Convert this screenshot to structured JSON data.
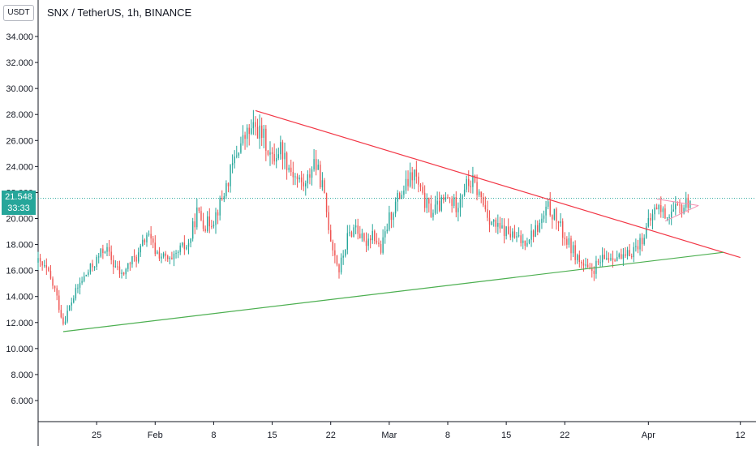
{
  "currency_label": "USDT",
  "title": "SNX / TetherUS, 1h, BINANCE",
  "last_price": {
    "value": "21.548",
    "countdown": "33:33",
    "color": "#26a69a"
  },
  "colors": {
    "up": "#26a69a",
    "down": "#ef5350",
    "resistance": "#f23645",
    "support": "#4caf50",
    "pennant": "#f48fb1",
    "price_line": "#26a69a",
    "axis": "#131722"
  },
  "chart_data": {
    "type": "candlestick",
    "title": "SNX / TetherUS, 1h, BINANCE",
    "ylim": [
      5,
      36
    ],
    "y_ticks": [
      "6.000",
      "8.000",
      "10.000",
      "12.000",
      "14.000",
      "16.000",
      "18.000",
      "20.000",
      "22.000",
      "24.000",
      "26.000",
      "28.000",
      "30.000",
      "32.000",
      "34.000"
    ],
    "x_ticks": [
      "25",
      "Feb",
      "8",
      "15",
      "22",
      "Mar",
      "8",
      "15",
      "22",
      "Apr",
      "12"
    ],
    "x_tick_dates": [
      "2021-01-25",
      "2021-02-01",
      "2021-02-08",
      "2021-02-15",
      "2021-02-22",
      "2021-03-01",
      "2021-03-08",
      "2021-03-15",
      "2021-03-22",
      "2021-04-01",
      "2021-04-12"
    ],
    "xlim": [
      "2021-01-18",
      "2021-04-13"
    ],
    "price_path": [
      [
        "2021-01-18",
        16.6
      ],
      [
        "2021-01-19",
        16.0
      ],
      [
        "2021-01-20",
        14.5
      ],
      [
        "2021-01-21",
        12.0
      ],
      [
        "2021-01-22",
        13.6
      ],
      [
        "2021-01-23",
        15.0
      ],
      [
        "2021-01-25",
        16.8
      ],
      [
        "2021-01-26",
        17.8
      ],
      [
        "2021-01-27",
        16.5
      ],
      [
        "2021-01-28",
        15.6
      ],
      [
        "2021-01-29",
        16.6
      ],
      [
        "2021-01-30",
        17.2
      ],
      [
        "2021-01-31",
        18.8
      ],
      [
        "2021-02-01",
        17.5
      ],
      [
        "2021-02-02",
        17.0
      ],
      [
        "2021-02-03",
        16.6
      ],
      [
        "2021-02-04",
        17.6
      ],
      [
        "2021-02-05",
        18.0
      ],
      [
        "2021-02-06",
        20.5
      ],
      [
        "2021-02-07",
        19.5
      ],
      [
        "2021-02-08",
        20.0
      ],
      [
        "2021-02-09",
        21.5
      ],
      [
        "2021-02-10",
        23.5
      ],
      [
        "2021-02-11",
        25.5
      ],
      [
        "2021-02-12",
        26.5
      ],
      [
        "2021-02-13",
        27.0
      ],
      [
        "2021-02-14",
        26.2
      ],
      [
        "2021-02-15",
        24.5
      ],
      [
        "2021-02-16",
        25.5
      ],
      [
        "2021-02-17",
        24.0
      ],
      [
        "2021-02-18",
        23.0
      ],
      [
        "2021-02-19",
        22.5
      ],
      [
        "2021-02-20",
        24.5
      ],
      [
        "2021-02-21",
        22.5
      ],
      [
        "2021-02-22",
        18.5
      ],
      [
        "2021-02-23",
        16.0
      ],
      [
        "2021-02-24",
        18.5
      ],
      [
        "2021-02-25",
        19.5
      ],
      [
        "2021-02-26",
        18.0
      ],
      [
        "2021-02-27",
        19.0
      ],
      [
        "2021-02-28",
        17.5
      ],
      [
        "2021-03-01",
        20.0
      ],
      [
        "2021-03-02",
        21.5
      ],
      [
        "2021-03-03",
        22.5
      ],
      [
        "2021-03-04",
        23.5
      ],
      [
        "2021-03-05",
        21.5
      ],
      [
        "2021-03-06",
        20.5
      ],
      [
        "2021-03-07",
        21.0
      ],
      [
        "2021-03-08",
        21.5
      ],
      [
        "2021-03-09",
        21.0
      ],
      [
        "2021-03-10",
        22.5
      ],
      [
        "2021-03-11",
        22.8
      ],
      [
        "2021-03-12",
        21.5
      ],
      [
        "2021-03-13",
        20.0
      ],
      [
        "2021-03-14",
        19.2
      ],
      [
        "2021-03-15",
        19.0
      ],
      [
        "2021-03-16",
        18.5
      ],
      [
        "2021-03-17",
        18.2
      ],
      [
        "2021-03-18",
        18.8
      ],
      [
        "2021-03-19",
        19.5
      ],
      [
        "2021-03-20",
        20.8
      ],
      [
        "2021-03-21",
        20.0
      ],
      [
        "2021-03-22",
        18.5
      ],
      [
        "2021-03-23",
        17.5
      ],
      [
        "2021-03-24",
        16.5
      ],
      [
        "2021-03-25",
        15.8
      ],
      [
        "2021-03-26",
        16.5
      ],
      [
        "2021-03-27",
        17.0
      ],
      [
        "2021-03-28",
        17.2
      ],
      [
        "2021-03-29",
        16.8
      ],
      [
        "2021-03-30",
        17.5
      ],
      [
        "2021-03-31",
        18.2
      ],
      [
        "2021-04-01",
        19.5
      ],
      [
        "2021-04-02",
        21.0
      ],
      [
        "2021-04-03",
        20.3
      ],
      [
        "2021-04-04",
        20.5
      ],
      [
        "2021-04-05",
        20.8
      ],
      [
        "2021-04-06",
        21.5
      ]
    ],
    "lines": [
      {
        "role": "resistance",
        "from": [
          "2021-02-13",
          28.3
        ],
        "to": [
          "2021-04-12",
          17.0
        ]
      },
      {
        "role": "support",
        "from": [
          "2021-01-21",
          11.3
        ],
        "to": [
          "2021-04-10",
          17.4
        ]
      },
      {
        "role": "pennant-top",
        "from": [
          "2021-04-02",
          21.5
        ],
        "to": [
          "2021-04-07",
          21.0
        ]
      },
      {
        "role": "pennant-bottom",
        "from": [
          "2021-04-03",
          19.8
        ],
        "to": [
          "2021-04-07",
          21.0
        ]
      }
    ],
    "price_line_value": 21.548,
    "grid": false
  }
}
